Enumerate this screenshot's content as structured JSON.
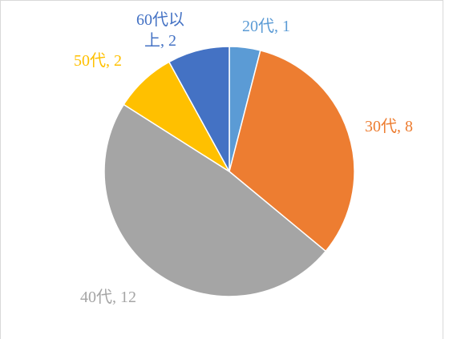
{
  "chart_data": {
    "type": "pie",
    "categories": [
      "20代",
      "30代",
      "40代",
      "50代",
      "60代以上"
    ],
    "values": [
      1,
      8,
      12,
      2,
      2
    ],
    "colors": [
      "#5b9bd5",
      "#ed7d31",
      "#a5a5a5",
      "#ffc000",
      "#4472c4"
    ]
  }
}
